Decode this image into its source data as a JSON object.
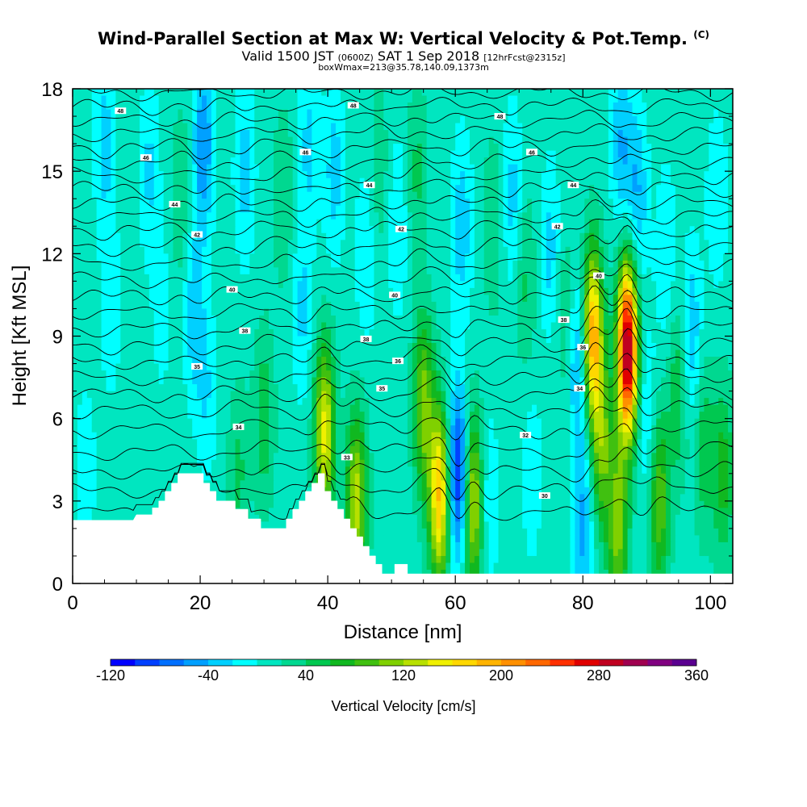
{
  "header": {
    "title": "Wind-Parallel Section at Max W: Vertical Velocity & Pot.Temp.",
    "title_mark": "(C)",
    "valid_prefix": "Valid 1500 JST",
    "valid_zulu": "(0600Z)",
    "valid_date": "SAT 1 Sep 2018",
    "forecast": "[12hrFcst@2315z]",
    "box_info": "boxWmax=213@35.78,140.09,1373m"
  },
  "chart_data": {
    "type": "heatmap",
    "title": "Wind-Parallel Section at Max W: Vertical Velocity & Pot.Temp.",
    "xlabel": "Distance [nm]",
    "ylabel": "Height [Kft MSL]",
    "xlim": [
      0,
      103.5
    ],
    "ylim": [
      0,
      18
    ],
    "x_ticks": [
      0,
      20,
      40,
      60,
      80,
      100
    ],
    "y_ticks": [
      0,
      3,
      6,
      9,
      12,
      15,
      18
    ],
    "colorbar": {
      "label": "Vertical Velocity [cm/s]",
      "min": -120,
      "max": 360,
      "step": 20,
      "tick_labels": [
        "-120",
        "-40",
        "40",
        "120",
        "200",
        "280",
        "360"
      ],
      "colors": [
        "#0000ff",
        "#0040ff",
        "#0070ff",
        "#00a0ff",
        "#00d0ff",
        "#00ffff",
        "#00e6c0",
        "#00d890",
        "#00c850",
        "#10b820",
        "#40c010",
        "#80d000",
        "#b8e000",
        "#f0f000",
        "#ffd800",
        "#ffb400",
        "#ff9000",
        "#ff6800",
        "#ff3000",
        "#e00000",
        "#c00020",
        "#a00050",
        "#800080",
        "#5a0090"
      ]
    },
    "background_velocity_cm_s": 10,
    "updraft_downdraft_cells": [
      {
        "x": 2,
        "z": 4,
        "w": -25,
        "label": "downdraft"
      },
      {
        "x": 5,
        "z": 16,
        "w": -40
      },
      {
        "x": 6,
        "z": 10,
        "w": -25
      },
      {
        "x": 12,
        "z": 15,
        "w": -35
      },
      {
        "x": 14,
        "z": 10,
        "w": -20
      },
      {
        "x": 17,
        "z": 14,
        "w": 30
      },
      {
        "x": 19,
        "z": 10,
        "w": -45
      },
      {
        "x": 20.5,
        "z": 16,
        "w": -70
      },
      {
        "x": 21,
        "z": 7,
        "w": -30
      },
      {
        "x": 26,
        "z": 4,
        "w": 35
      },
      {
        "x": 27,
        "z": 15,
        "w": -40
      },
      {
        "x": 30,
        "z": 6,
        "w": 45
      },
      {
        "x": 33,
        "z": 14,
        "w": 30
      },
      {
        "x": 36,
        "z": 10,
        "w": -35
      },
      {
        "x": 37,
        "z": 16,
        "w": -35
      },
      {
        "x": 39.5,
        "z": 5.5,
        "w": 140
      },
      {
        "x": 41,
        "z": 15,
        "w": -40
      },
      {
        "x": 44.5,
        "z": 3,
        "w": 120
      },
      {
        "x": 46,
        "z": 12,
        "w": -30
      },
      {
        "x": 48,
        "z": 15,
        "w": 25
      },
      {
        "x": 51,
        "z": 13,
        "w": -30
      },
      {
        "x": 54,
        "z": 15,
        "w": 35
      },
      {
        "x": 55,
        "z": 6.5,
        "w": 100
      },
      {
        "x": 57.5,
        "z": 3.2,
        "w": 170
      },
      {
        "x": 60.5,
        "z": 4,
        "w": -120
      },
      {
        "x": 61,
        "z": 13,
        "w": -45
      },
      {
        "x": 62.8,
        "z": 3,
        "w": 130
      },
      {
        "x": 65,
        "z": 3,
        "w": -35
      },
      {
        "x": 66,
        "z": 13,
        "w": 30
      },
      {
        "x": 69,
        "z": 14,
        "w": -40
      },
      {
        "x": 71,
        "z": 11,
        "w": 35
      },
      {
        "x": 72,
        "z": 4,
        "w": -25
      },
      {
        "x": 75,
        "z": 12,
        "w": -40
      },
      {
        "x": 77,
        "z": 10,
        "w": 30
      },
      {
        "x": 79.5,
        "z": 8,
        "w": -70
      },
      {
        "x": 80,
        "z": 2,
        "w": -55
      },
      {
        "x": 81.5,
        "z": 9,
        "w": 190
      },
      {
        "x": 83,
        "z": 5,
        "w": 90
      },
      {
        "x": 85.5,
        "z": 2,
        "w": 100
      },
      {
        "x": 86,
        "z": 16,
        "w": -50
      },
      {
        "x": 87,
        "z": 8.5,
        "w": 300
      },
      {
        "x": 88.5,
        "z": 14,
        "w": -55
      },
      {
        "x": 90,
        "z": 6,
        "w": -35
      },
      {
        "x": 92,
        "z": 3,
        "w": 90
      },
      {
        "x": 93,
        "z": 12,
        "w": -30
      },
      {
        "x": 95,
        "z": 7,
        "w": 50
      },
      {
        "x": 97,
        "z": 9,
        "w": -50
      },
      {
        "x": 99,
        "z": 5,
        "w": 45
      },
      {
        "x": 101,
        "z": 14,
        "w": -30
      },
      {
        "x": 102,
        "z": 4,
        "w": 60
      }
    ],
    "theta_contours": {
      "interval_C": 1,
      "base_height_kft": [
        2.6,
        3.4,
        4.1,
        4.8,
        5.6,
        6.3,
        6.9,
        7.5,
        8.1,
        8.7,
        9.3,
        9.9,
        10.5,
        11.1,
        11.7,
        12.3,
        12.9,
        13.4,
        13.9,
        14.4,
        14.9,
        15.4,
        15.9,
        16.4,
        16.9,
        17.4,
        17.9
      ],
      "labels": [
        {
          "text": "30",
          "x": 74,
          "z": 3.2
        },
        {
          "text": "32",
          "x": 71,
          "z": 5.4
        },
        {
          "text": "33",
          "x": 43,
          "z": 4.6
        },
        {
          "text": "34",
          "x": 26,
          "z": 5.7
        },
        {
          "text": "34",
          "x": 79.5,
          "z": 7.1
        },
        {
          "text": "35",
          "x": 48.5,
          "z": 7.1
        },
        {
          "text": "35",
          "x": 19.5,
          "z": 7.9
        },
        {
          "text": "36",
          "x": 51,
          "z": 8.1
        },
        {
          "text": "36",
          "x": 80,
          "z": 8.6
        },
        {
          "text": "38",
          "x": 27,
          "z": 9.2
        },
        {
          "text": "38",
          "x": 46,
          "z": 8.9
        },
        {
          "text": "38",
          "x": 77,
          "z": 9.6
        },
        {
          "text": "40",
          "x": 25,
          "z": 10.7
        },
        {
          "text": "40",
          "x": 50.5,
          "z": 10.5
        },
        {
          "text": "40",
          "x": 82.5,
          "z": 11.2
        },
        {
          "text": "42",
          "x": 19.5,
          "z": 12.7
        },
        {
          "text": "42",
          "x": 51.5,
          "z": 12.9
        },
        {
          "text": "42",
          "x": 76,
          "z": 13.0
        },
        {
          "text": "44",
          "x": 16,
          "z": 13.8
        },
        {
          "text": "44",
          "x": 46.5,
          "z": 14.5
        },
        {
          "text": "44",
          "x": 78.5,
          "z": 14.5
        },
        {
          "text": "46",
          "x": 11.5,
          "z": 15.5
        },
        {
          "text": "46",
          "x": 36.5,
          "z": 15.7
        },
        {
          "text": "46",
          "x": 72,
          "z": 15.7
        },
        {
          "text": "48",
          "x": 7.5,
          "z": 17.2
        },
        {
          "text": "48",
          "x": 44,
          "z": 17.4
        },
        {
          "text": "48",
          "x": 67,
          "z": 17.0
        }
      ]
    },
    "terrain_kft": [
      {
        "x": 0,
        "z": 2.3
      },
      {
        "x": 9.5,
        "z": 2.3
      },
      {
        "x": 10,
        "z": 2.5
      },
      {
        "x": 12.5,
        "z": 2.5
      },
      {
        "x": 12.5,
        "z": 2.75
      },
      {
        "x": 13.5,
        "z": 2.75
      },
      {
        "x": 13.5,
        "z": 3.0
      },
      {
        "x": 14.5,
        "z": 3.0
      },
      {
        "x": 14.5,
        "z": 3.35
      },
      {
        "x": 15.5,
        "z": 3.35
      },
      {
        "x": 15.5,
        "z": 3.65
      },
      {
        "x": 16.5,
        "z": 3.65
      },
      {
        "x": 16.5,
        "z": 4.0
      },
      {
        "x": 20.5,
        "z": 4.0
      },
      {
        "x": 20.5,
        "z": 3.65
      },
      {
        "x": 21.5,
        "z": 3.65
      },
      {
        "x": 21.5,
        "z": 3.35
      },
      {
        "x": 22.5,
        "z": 3.35
      },
      {
        "x": 22.5,
        "z": 3.0
      },
      {
        "x": 25.5,
        "z": 3.0
      },
      {
        "x": 25.5,
        "z": 2.7
      },
      {
        "x": 27.5,
        "z": 2.7
      },
      {
        "x": 27.5,
        "z": 2.35
      },
      {
        "x": 29.5,
        "z": 2.35
      },
      {
        "x": 29.5,
        "z": 2.0
      },
      {
        "x": 33.5,
        "z": 2.0
      },
      {
        "x": 33.5,
        "z": 2.35
      },
      {
        "x": 34.5,
        "z": 2.35
      },
      {
        "x": 34.5,
        "z": 2.7
      },
      {
        "x": 35.5,
        "z": 2.7
      },
      {
        "x": 35.5,
        "z": 3.0
      },
      {
        "x": 36.5,
        "z": 3.0
      },
      {
        "x": 36.5,
        "z": 3.35
      },
      {
        "x": 37.5,
        "z": 3.35
      },
      {
        "x": 37.5,
        "z": 3.65
      },
      {
        "x": 38.5,
        "z": 3.65
      },
      {
        "x": 38.5,
        "z": 4.0
      },
      {
        "x": 39.5,
        "z": 4.0
      },
      {
        "x": 39.5,
        "z": 3.35
      },
      {
        "x": 40.5,
        "z": 3.35
      },
      {
        "x": 40.5,
        "z": 3.0
      },
      {
        "x": 41.5,
        "z": 3.0
      },
      {
        "x": 41.5,
        "z": 2.7
      },
      {
        "x": 42.5,
        "z": 2.7
      },
      {
        "x": 42.5,
        "z": 2.35
      },
      {
        "x": 43.5,
        "z": 2.35
      },
      {
        "x": 43.5,
        "z": 2.0
      },
      {
        "x": 44.5,
        "z": 2.0
      },
      {
        "x": 44.5,
        "z": 1.7
      },
      {
        "x": 45.5,
        "z": 1.7
      },
      {
        "x": 45.5,
        "z": 1.35
      },
      {
        "x": 46.5,
        "z": 1.35
      },
      {
        "x": 46.5,
        "z": 1.0
      },
      {
        "x": 47.5,
        "z": 1.0
      },
      {
        "x": 47.5,
        "z": 0.7
      },
      {
        "x": 48.5,
        "z": 0.7
      },
      {
        "x": 48.5,
        "z": 0.35
      },
      {
        "x": 50.5,
        "z": 0.35
      },
      {
        "x": 50.5,
        "z": 0.7
      },
      {
        "x": 52.5,
        "z": 0.7
      },
      {
        "x": 52.5,
        "z": 0.35
      },
      {
        "x": 103.5,
        "z": 0.35
      }
    ]
  }
}
